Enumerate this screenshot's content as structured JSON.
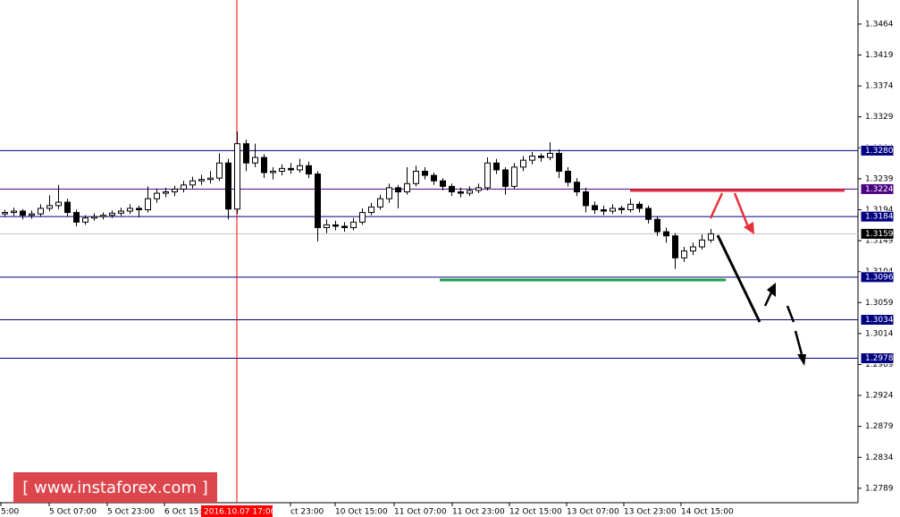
{
  "chart_data": {
    "type": "candlestick",
    "candles": [
      [
        1.3188,
        1.3194,
        1.3184,
        1.319
      ],
      [
        1.319,
        1.3197,
        1.3185,
        1.3192
      ],
      [
        1.3192,
        1.3195,
        1.318,
        1.3186
      ],
      [
        1.3186,
        1.3193,
        1.3181,
        1.3188
      ],
      [
        1.3188,
        1.3202,
        1.3184,
        1.3196
      ],
      [
        1.3196,
        1.3215,
        1.3192,
        1.32
      ],
      [
        1.32,
        1.323,
        1.3195,
        1.3205
      ],
      [
        1.3205,
        1.321,
        1.3184,
        1.319
      ],
      [
        1.319,
        1.3194,
        1.317,
        1.3176
      ],
      [
        1.3176,
        1.3186,
        1.3172,
        1.3182
      ],
      [
        1.3182,
        1.3189,
        1.3178,
        1.3184
      ],
      [
        1.3184,
        1.319,
        1.318,
        1.3186
      ],
      [
        1.3186,
        1.3193,
        1.3182,
        1.3189
      ],
      [
        1.3189,
        1.3197,
        1.3185,
        1.3192
      ],
      [
        1.3192,
        1.3202,
        1.3188,
        1.3196
      ],
      [
        1.3196,
        1.32,
        1.3183,
        1.3194
      ],
      [
        1.3194,
        1.3228,
        1.319,
        1.321
      ],
      [
        1.321,
        1.3224,
        1.3204,
        1.3218
      ],
      [
        1.3218,
        1.3226,
        1.3212,
        1.322
      ],
      [
        1.322,
        1.3229,
        1.3214,
        1.3224
      ],
      [
        1.3224,
        1.3236,
        1.3219,
        1.323
      ],
      [
        1.323,
        1.3242,
        1.3225,
        1.3236
      ],
      [
        1.3236,
        1.3245,
        1.323,
        1.3238
      ],
      [
        1.3238,
        1.325,
        1.3232,
        1.324
      ],
      [
        1.324,
        1.3276,
        1.3236,
        1.3262
      ],
      [
        1.3262,
        1.3268,
        1.318,
        1.3195
      ],
      [
        1.3195,
        1.3308,
        1.3188,
        1.329
      ],
      [
        1.329,
        1.3296,
        1.325,
        1.3262
      ],
      [
        1.3262,
        1.329,
        1.3256,
        1.327
      ],
      [
        1.327,
        1.3275,
        1.324,
        1.3248
      ],
      [
        1.3248,
        1.3256,
        1.3238,
        1.325
      ],
      [
        1.325,
        1.326,
        1.3244,
        1.3254
      ],
      [
        1.3254,
        1.3262,
        1.3246,
        1.3252
      ],
      [
        1.3252,
        1.3268,
        1.3248,
        1.3258
      ],
      [
        1.3258,
        1.3264,
        1.324,
        1.3246
      ],
      [
        1.3246,
        1.325,
        1.3148,
        1.3168
      ],
      [
        1.3168,
        1.318,
        1.316,
        1.3172
      ],
      [
        1.3172,
        1.3178,
        1.3164,
        1.317
      ],
      [
        1.317,
        1.3176,
        1.3162,
        1.3168
      ],
      [
        1.3168,
        1.3182,
        1.3164,
        1.3176
      ],
      [
        1.3176,
        1.3196,
        1.3172,
        1.319
      ],
      [
        1.319,
        1.3204,
        1.3186,
        1.3198
      ],
      [
        1.3198,
        1.3216,
        1.3194,
        1.321
      ],
      [
        1.321,
        1.3232,
        1.3204,
        1.3226
      ],
      [
        1.3226,
        1.323,
        1.3196,
        1.322
      ],
      [
        1.322,
        1.3256,
        1.3216,
        1.3232
      ],
      [
        1.3232,
        1.3258,
        1.3228,
        1.325
      ],
      [
        1.325,
        1.3256,
        1.3238,
        1.3244
      ],
      [
        1.3244,
        1.3248,
        1.323,
        1.3236
      ],
      [
        1.3236,
        1.324,
        1.3222,
        1.3228
      ],
      [
        1.3228,
        1.3232,
        1.3214,
        1.322
      ],
      [
        1.322,
        1.3226,
        1.3212,
        1.3218
      ],
      [
        1.3218,
        1.3228,
        1.3214,
        1.3222
      ],
      [
        1.3222,
        1.3232,
        1.3218,
        1.3226
      ],
      [
        1.3226,
        1.327,
        1.3222,
        1.3262
      ],
      [
        1.3262,
        1.3268,
        1.3246,
        1.3252
      ],
      [
        1.3252,
        1.3256,
        1.3216,
        1.3228
      ],
      [
        1.3228,
        1.3262,
        1.3224,
        1.3256
      ],
      [
        1.3256,
        1.3272,
        1.325,
        1.3266
      ],
      [
        1.3266,
        1.3278,
        1.326,
        1.3272
      ],
      [
        1.3272,
        1.3276,
        1.3264,
        1.327
      ],
      [
        1.327,
        1.3292,
        1.3266,
        1.3276
      ],
      [
        1.3276,
        1.3282,
        1.324,
        1.325
      ],
      [
        1.325,
        1.3256,
        1.3228,
        1.3234
      ],
      [
        1.3234,
        1.324,
        1.3214,
        1.322
      ],
      [
        1.322,
        1.3226,
        1.319,
        1.32
      ],
      [
        1.32,
        1.3206,
        1.3188,
        1.3194
      ],
      [
        1.3194,
        1.32,
        1.3186,
        1.3192
      ],
      [
        1.3192,
        1.3202,
        1.3188,
        1.3196
      ],
      [
        1.3196,
        1.32,
        1.3188,
        1.3194
      ],
      [
        1.3194,
        1.321,
        1.319,
        1.3202
      ],
      [
        1.3202,
        1.3206,
        1.319,
        1.3196
      ],
      [
        1.3196,
        1.32,
        1.3174,
        1.318
      ],
      [
        1.318,
        1.3184,
        1.3156,
        1.3162
      ],
      [
        1.3162,
        1.3168,
        1.3146,
        1.3156
      ],
      [
        1.3156,
        1.316,
        1.3108,
        1.3124
      ],
      [
        1.3124,
        1.314,
        1.3118,
        1.3134
      ],
      [
        1.3134,
        1.3146,
        1.3128,
        1.314
      ],
      [
        1.314,
        1.3158,
        1.3136,
        1.315
      ],
      [
        1.315,
        1.3166,
        1.3146,
        1.3159
      ]
    ],
    "xlim": [
      -0.5,
      95.5
    ],
    "xticks": [
      {
        "value": -0.4,
        "label": "5:00"
      },
      {
        "value": 5,
        "label": "5 Oct 07:00"
      },
      {
        "value": 11.5,
        "label": "5 Oct 23:00"
      },
      {
        "value": 17.9,
        "label": "6 Oct 15:00"
      },
      {
        "value": 32,
        "label": "ct 23:00"
      },
      {
        "value": 37,
        "label": "10 Oct 15:00"
      },
      {
        "value": 43.6,
        "label": "11 Oct 07:00"
      },
      {
        "value": 50.1,
        "label": "11 Oct 23:00"
      },
      {
        "value": 56.5,
        "label": "12 Oct 15:00"
      },
      {
        "value": 62.9,
        "label": "13 Oct 07:00"
      },
      {
        "value": 69.3,
        "label": "13 Oct 23:00"
      },
      {
        "value": 75.7,
        "label": "14 Oct 15:00"
      }
    ],
    "vline": {
      "value": 26,
      "label": "2016.10.07 17:00",
      "color": "#ff0000"
    },
    "ylim": [
      1.2768,
      1.3499
    ],
    "yticks": [
      1.3464,
      1.3419,
      1.3374,
      1.3329,
      1.3284,
      1.3239,
      1.3194,
      1.3149,
      1.3104,
      1.3059,
      1.3014,
      1.2969,
      1.2924,
      1.2879,
      1.2834,
      1.2789
    ],
    "levels": [
      {
        "value": 1.328,
        "label": "1.3280",
        "color": "#000080",
        "label_bg": "#000080"
      },
      {
        "value": 1.3224,
        "label": "1.3224",
        "color": "#4b0082",
        "label_bg": "#4b0082"
      },
      {
        "value": 1.3184,
        "label": "1.3184",
        "color": "#000080",
        "label_bg": "#000080"
      },
      {
        "value": 1.3159,
        "label": "1.3159",
        "color": "#c0c0c0",
        "label_bg": "#000000"
      },
      {
        "value": 1.3096,
        "label": "1.3096",
        "color": "#000080",
        "label_bg": "#000080"
      },
      {
        "value": 1.3034,
        "label": "1.3034",
        "color": "#000080",
        "label_bg": "#000080"
      },
      {
        "value": 1.2978,
        "label": "1.2978",
        "color": "#000080",
        "label_bg": "#000080"
      }
    ],
    "watermark": "[ www.instaforex.com ]"
  }
}
